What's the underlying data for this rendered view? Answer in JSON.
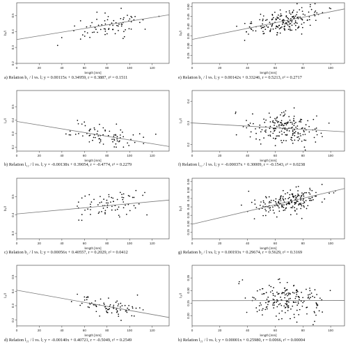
{
  "figure": {
    "panels": [
      "a",
      "b",
      "c",
      "d",
      "e",
      "f",
      "g",
      "h"
    ]
  },
  "chart_data": [
    {
      "id": "a",
      "type": "scatter",
      "caption": "a) Relation b₁ / l vs. l; y = 0.00115x + 0.34959, r = 0.3887, r² = 0.1511",
      "xlabel": "length [mm]",
      "ylabel": "b₁/l",
      "xlim": [
        0,
        135
      ],
      "ylim": [
        0.2,
        0.58
      ],
      "xticks": [
        0,
        20,
        40,
        60,
        80,
        100,
        120
      ],
      "yticks": [
        0.2,
        0.3,
        0.4,
        0.5
      ],
      "grid": false,
      "regression": {
        "slope": 0.00115,
        "intercept": 0.34959,
        "r": 0.3887,
        "r2": 0.1511
      },
      "n_points": 75,
      "x_range": [
        32,
        130
      ],
      "noise": 0.055,
      "seed": 11
    },
    {
      "id": "b",
      "type": "scatter",
      "caption": "b) Relation l₁₂ / l vs. l; y = -0.00138x + 0.39054, r = -0.4774, r² = 0.2279",
      "xlabel": "length [mm]",
      "ylabel": "l₁₂/l",
      "xlim": [
        0,
        135
      ],
      "ylim": [
        0.17,
        0.62
      ],
      "xticks": [
        0,
        20,
        40,
        60,
        80,
        100,
        120
      ],
      "yticks": [
        0.2,
        0.3,
        0.4,
        0.5
      ],
      "grid": false,
      "regression": {
        "slope": -0.00138,
        "intercept": 0.39054,
        "r": -0.4774,
        "r2": 0.2279
      },
      "n_points": 75,
      "x_range": [
        33,
        130
      ],
      "noise": 0.05,
      "seed": 22
    },
    {
      "id": "c",
      "type": "scatter",
      "caption": "c) Relation b₂ / l vs. l; y = 0.00056x + 0.40557, r = 0.2029, r² = 0.0412",
      "xlabel": "length [mm]",
      "ylabel": "b₂/l",
      "xlim": [
        0,
        135
      ],
      "ylim": [
        0.27,
        0.6
      ],
      "xticks": [
        0,
        20,
        40,
        60,
        80,
        100,
        120
      ],
      "yticks": [
        0.3,
        0.4,
        0.5
      ],
      "grid": false,
      "regression": {
        "slope": 0.00056,
        "intercept": 0.40557,
        "r": 0.2029,
        "r2": 0.0412
      },
      "n_points": 75,
      "x_range": [
        36,
        130
      ],
      "noise": 0.05,
      "seed": 33
    },
    {
      "id": "d",
      "type": "scatter",
      "caption": "d) Relation l₂₁ / l vs. l; y = -0.00140x + 0.40721, r = -0.5049, r² = 0.2549",
      "xlabel": "length [mm]",
      "ylabel": "l₂₁/l",
      "xlim": [
        0,
        135
      ],
      "ylim": [
        0.16,
        0.58
      ],
      "xticks": [
        0,
        20,
        40,
        60,
        80,
        100,
        120
      ],
      "yticks": [
        0.2,
        0.3,
        0.4,
        0.5
      ],
      "grid": false,
      "regression": {
        "slope": -0.0014,
        "intercept": 0.40721,
        "r": -0.5049,
        "r2": 0.2549
      },
      "n_points": 75,
      "x_range": [
        36,
        130
      ],
      "noise": 0.045,
      "seed": 44
    },
    {
      "id": "e",
      "type": "scatter",
      "caption": "e) Relation b₁ / l vs. l; y = 0.00142x + 0.33246, r = 0.5213, r² = 0.2717",
      "xlabel": "length [mm]",
      "ylabel": "b₁/l",
      "xlim": [
        0,
        110
      ],
      "ylim": [
        0.21,
        0.52
      ],
      "xticks": [
        0,
        20,
        40,
        60,
        80,
        100
      ],
      "yticks": [
        0.25,
        0.3,
        0.35,
        0.4,
        0.45,
        0.5
      ],
      "grid": false,
      "regression": {
        "slope": 0.00142,
        "intercept": 0.33246,
        "r": 0.5213,
        "r2": 0.2717
      },
      "n_points": 190,
      "x_range": [
        28,
        106
      ],
      "noise": 0.04,
      "seed": 55
    },
    {
      "id": "f",
      "type": "scatter",
      "caption": "f) Relation l₁₂ / l vs. l; y = -0.00037x + 0.30009, r = -0.1543, r² = 0.0238",
      "xlabel": "length [mm]",
      "ylabel": "l₁₂/l",
      "xlim": [
        0,
        110
      ],
      "ylim": [
        0.17,
        0.45
      ],
      "xticks": [
        0,
        20,
        40,
        60,
        80,
        100
      ],
      "yticks": [
        0.2,
        0.3,
        0.4
      ],
      "grid": false,
      "regression": {
        "slope": -0.00037,
        "intercept": 0.30009,
        "r": -0.1543,
        "r2": 0.0238
      },
      "n_points": 190,
      "x_range": [
        28,
        106
      ],
      "noise": 0.045,
      "seed": 66
    },
    {
      "id": "g",
      "type": "scatter",
      "caption": "g) Relation b₂ / l vs. l; y = 0.00193x + 0.29674, r = 0.5629, r² = 0.3169",
      "xlabel": "length [mm]",
      "ylabel": "b₂/l",
      "xlim": [
        0,
        110
      ],
      "ylim": [
        0.21,
        0.57
      ],
      "xticks": [
        0,
        20,
        40,
        60,
        80,
        100
      ],
      "yticks": [
        0.25,
        0.3,
        0.35,
        0.4,
        0.45,
        0.5,
        0.55
      ],
      "grid": false,
      "regression": {
        "slope": 0.00193,
        "intercept": 0.29674,
        "r": 0.5629,
        "r2": 0.3169
      },
      "n_points": 190,
      "x_range": [
        28,
        106
      ],
      "noise": 0.045,
      "seed": 77
    },
    {
      "id": "h",
      "type": "scatter",
      "caption": "h) Relation l₂₁ / l vs. l; y = 0.00001x + 0.25980, r = 0.0066, r² = 0.00004",
      "xlabel": "length [mm]",
      "ylabel": "l₂₁/l",
      "xlim": [
        0,
        110
      ],
      "ylim": [
        0.16,
        0.4
      ],
      "xticks": [
        0,
        20,
        40,
        60,
        80,
        100
      ],
      "yticks": [
        0.2,
        0.25,
        0.3,
        0.35
      ],
      "grid": false,
      "regression": {
        "slope": 1e-05,
        "intercept": 0.2598,
        "r": 0.0066,
        "r2": 4e-05
      },
      "n_points": 190,
      "x_range": [
        28,
        106
      ],
      "noise": 0.045,
      "seed": 88
    }
  ]
}
